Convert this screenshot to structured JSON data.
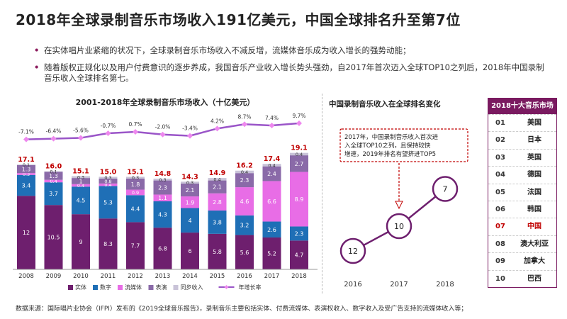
{
  "title": "2018年全球录制音乐市场收入191亿美元，中国全球排名升至第7位",
  "bullets": [
    "在实体唱片业紧缩的状况下，全球录制音乐市场收入不减反增，流媒体音乐成为收入增长的强势动能；",
    "随着版权正规化以及用户付费意识的逐步养成，我国音乐产业收入增长势头强劲，自2017年首次迈入全球TOP10之列后，2018年中国录制音乐收入全球排名第七。"
  ],
  "source": "数据来源：国际唱片业协会（IFPI）发布的《2019全球音乐报告》，录制音乐主要包括实体、付费流媒体、表演权收入、数字收入及受广告支持的流媒体收入等；",
  "colors": {
    "physical": "#6e1f6e",
    "digital": "#1f6fb6",
    "streaming": "#e86de6",
    "performance": "#8a6aa8",
    "sync": "#c9c3d8",
    "growth": "#9a55c8",
    "total": "#c00000",
    "accent": "#7a1a60"
  },
  "chart_data": [
    {
      "type": "bar",
      "stacked": true,
      "title": "2001-2018年全球录制音乐市场收入（十亿美元）",
      "categories": [
        "2008",
        "2009",
        "2010",
        "2011",
        "2012",
        "2013",
        "2014",
        "2015",
        "2016",
        "2017",
        "2018"
      ],
      "series": [
        {
          "name": "实体",
          "values": [
            12,
            10.5,
            9,
            8.3,
            7.7,
            6.8,
            6,
            5.8,
            5.6,
            5.2,
            4.7
          ]
        },
        {
          "name": "数字",
          "values": [
            3.4,
            3.7,
            4.5,
            5.3,
            4.4,
            4.3,
            4,
            3.8,
            3.2,
            2.6,
            2.3
          ]
        },
        {
          "name": "流媒体",
          "values": [
            0.3,
            0.4,
            0.4,
            0.4,
            0.9,
            1.1,
            1.9,
            2.8,
            4.6,
            6.6,
            8.9
          ]
        },
        {
          "name": "表演",
          "values": [
            1.3,
            1.3,
            1,
            0.8,
            1.8,
            2.3,
            2.1,
            2.1,
            2.3,
            2.4,
            2.7
          ]
        },
        {
          "name": "同步收入",
          "values": [
            0.1,
            0.1,
            0.3,
            0.3,
            0.3,
            0.3,
            0.3,
            0.4,
            0.4,
            0.4,
            0.4
          ]
        }
      ],
      "totals": [
        17.1,
        16.0,
        15.1,
        15.0,
        15.1,
        14.8,
        14.3,
        14.9,
        16.2,
        17.4,
        19.1
      ],
      "growth_series": {
        "name": "年增长率",
        "values": [
          "-7.1%",
          "-6.4%",
          "-5.6%",
          "-0.7%",
          "0.7%",
          "-2.0%",
          "-3.4%",
          "4.2%",
          "8.7%",
          "7.4%",
          "9.7%"
        ]
      },
      "legend": [
        "实体",
        "数字",
        "流媒体",
        "表演",
        "同步收入",
        "年增长率"
      ],
      "legend_position": "bottom",
      "ylim": [
        0,
        20
      ]
    },
    {
      "type": "scatter",
      "title": "中国录制音乐收入在全球排名变化",
      "x": [
        "2016",
        "2017",
        "2018"
      ],
      "values": [
        12,
        10,
        7
      ],
      "annotation": "2017年，中国录制音乐收入首次进入全球TOP10之列，且保持较快增速，2019年排名有望挤进TOP5"
    },
    {
      "type": "table",
      "title": "2018十大音乐市场",
      "rows": [
        {
          "rank": "01",
          "country": "美国"
        },
        {
          "rank": "02",
          "country": "日本"
        },
        {
          "rank": "03",
          "country": "英国"
        },
        {
          "rank": "04",
          "country": "德国"
        },
        {
          "rank": "05",
          "country": "法国"
        },
        {
          "rank": "06",
          "country": "韩国"
        },
        {
          "rank": "07",
          "country": "中国",
          "highlight": true
        },
        {
          "rank": "08",
          "country": "澳大利亚"
        },
        {
          "rank": "09",
          "country": "加拿大"
        },
        {
          "rank": "10",
          "country": "巴西"
        }
      ]
    }
  ]
}
